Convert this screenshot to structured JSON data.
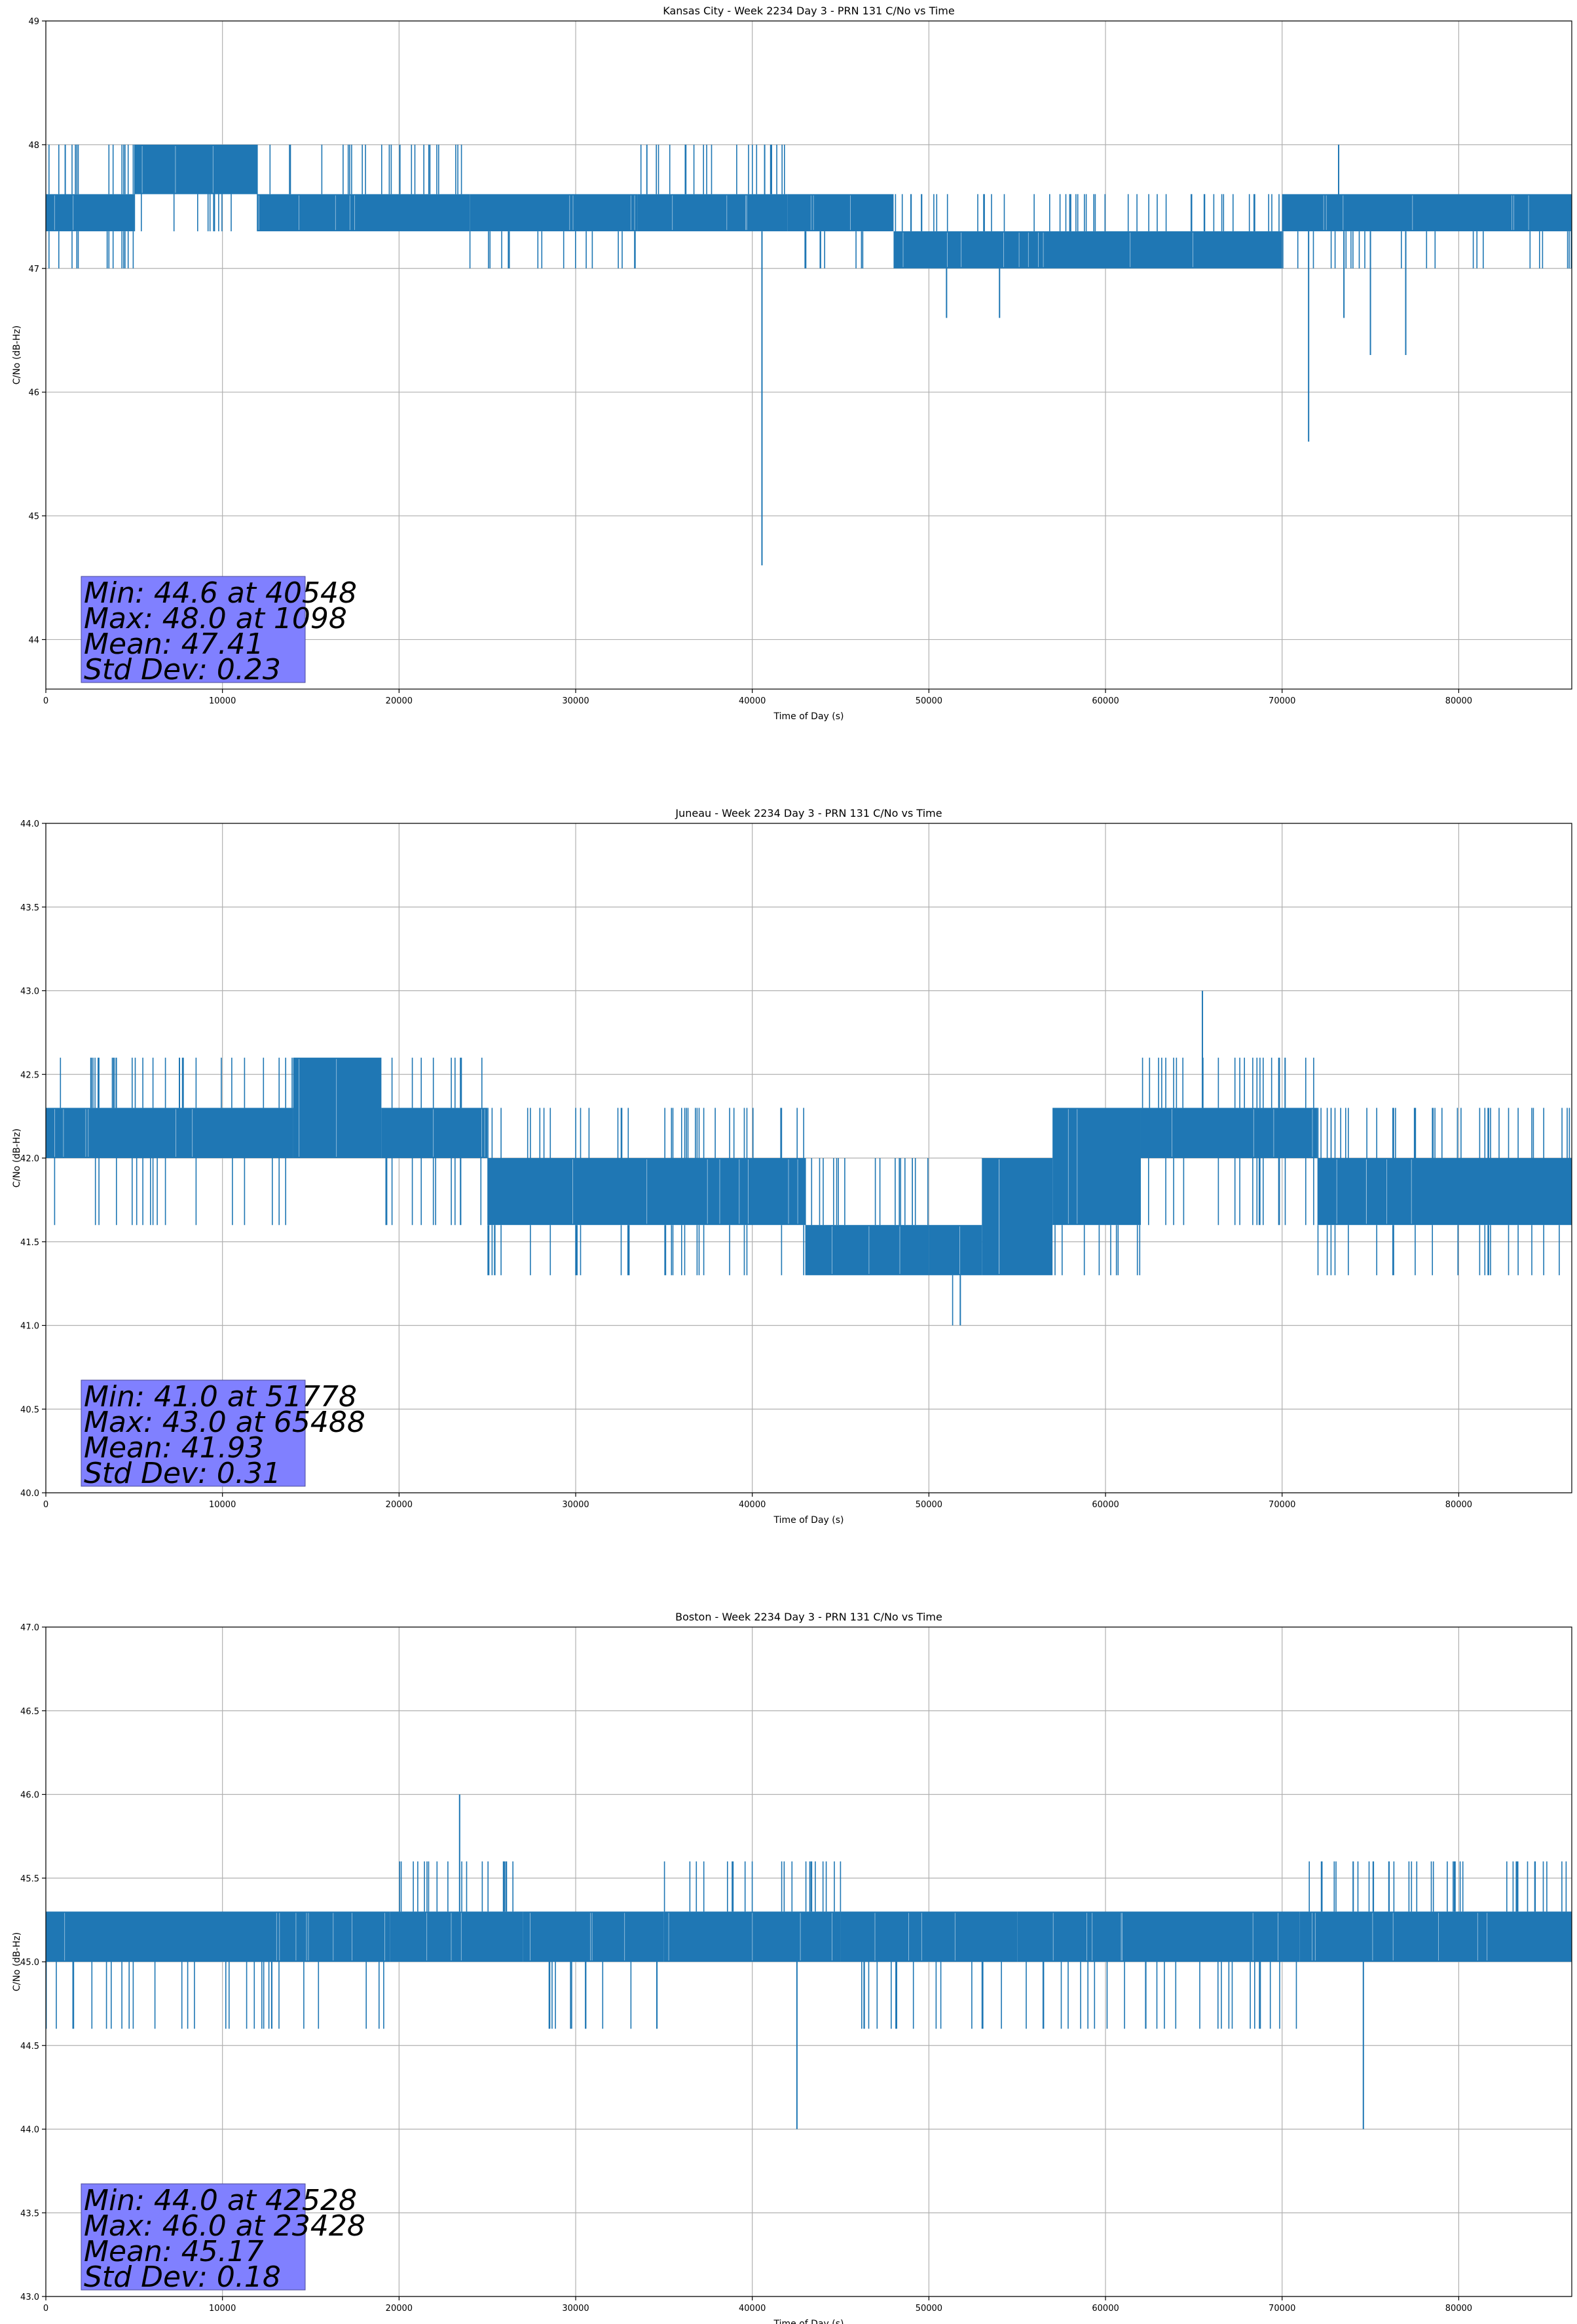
{
  "chart_data": [
    {
      "type": "line",
      "title": "Kansas City - Week 2234 Day 3 - PRN 131 C/No vs Time",
      "xlabel": "Time of Day (s)",
      "ylabel": "C/No (dB-Hz)",
      "xlim": [
        0,
        86400
      ],
      "ylim": [
        43.6,
        49.0
      ],
      "xticks": [
        0,
        10000,
        20000,
        30000,
        40000,
        50000,
        60000,
        70000,
        80000
      ],
      "yticks": [
        44,
        45,
        46,
        47,
        48,
        49
      ],
      "ytick_decimals": 0,
      "grid": true,
      "color": "#1f77b4",
      "series": {
        "name": "PRN 131",
        "segments": [
          {
            "x0": 0,
            "x1": 5000,
            "levels": [
              47.3,
              47.6
            ],
            "up": [
              48.0
            ],
            "down": [
              47.0
            ]
          },
          {
            "x0": 5000,
            "x1": 12000,
            "levels": [
              47.6,
              48.0
            ],
            "up": [],
            "down": [
              47.3
            ]
          },
          {
            "x0": 12000,
            "x1": 24000,
            "levels": [
              47.3,
              47.6
            ],
            "up": [
              48.0
            ],
            "down": []
          },
          {
            "x0": 24000,
            "x1": 33500,
            "levels": [
              47.3,
              47.6
            ],
            "up": [],
            "down": [
              47.0
            ]
          },
          {
            "x0": 33500,
            "x1": 42000,
            "levels": [
              47.3,
              47.6
            ],
            "up": [
              48.0
            ],
            "down": []
          },
          {
            "x0": 42000,
            "x1": 48000,
            "levels": [
              47.3,
              47.6
            ],
            "up": [],
            "down": [
              47.0
            ]
          },
          {
            "x0": 48000,
            "x1": 70000,
            "levels": [
              47.0,
              47.3
            ],
            "up": [
              47.6
            ],
            "down": []
          },
          {
            "x0": 70000,
            "x1": 86400,
            "levels": [
              47.3,
              47.6
            ],
            "up": [],
            "down": [
              47.0
            ]
          }
        ],
        "spikes": [
          [
            40548,
            44.6
          ],
          [
            1098,
            48.0
          ],
          [
            51000,
            46.6
          ],
          [
            54000,
            46.6
          ],
          [
            71500,
            45.6
          ],
          [
            73200,
            48.0
          ],
          [
            73500,
            46.6
          ],
          [
            75000,
            46.3
          ],
          [
            77000,
            46.3
          ],
          [
            40700,
            48.0
          ]
        ]
      },
      "stats": [
        "Min: 44.6 at 40548",
        "Max: 48.0 at 1098",
        "Mean: 47.41",
        "Std Dev: 0.23"
      ]
    },
    {
      "type": "line",
      "title": "Juneau - Week 2234 Day 3 - PRN 131 C/No vs Time",
      "xlabel": "Time of Day (s)",
      "ylabel": "C/No (dB-Hz)",
      "xlim": [
        0,
        86400
      ],
      "ylim": [
        40.0,
        44.0
      ],
      "xticks": [
        0,
        10000,
        20000,
        30000,
        40000,
        50000,
        60000,
        70000,
        80000
      ],
      "yticks": [
        40.0,
        40.5,
        41.0,
        41.5,
        42.0,
        42.5,
        43.0,
        43.5,
        44.0
      ],
      "ytick_decimals": 1,
      "grid": true,
      "color": "#1f77b4",
      "series": {
        "name": "PRN 131",
        "segments": [
          {
            "x0": 0,
            "x1": 14000,
            "levels": [
              42.0,
              42.3
            ],
            "up": [
              42.6
            ],
            "down": [
              41.6
            ]
          },
          {
            "x0": 14000,
            "x1": 19000,
            "levels": [
              42.0,
              42.3,
              42.6
            ],
            "up": [],
            "down": []
          },
          {
            "x0": 19000,
            "x1": 25000,
            "levels": [
              42.0,
              42.3
            ],
            "up": [
              42.6
            ],
            "down": [
              41.6
            ]
          },
          {
            "x0": 25000,
            "x1": 43000,
            "levels": [
              41.6,
              42.0
            ],
            "up": [
              42.3
            ],
            "down": [
              41.3
            ]
          },
          {
            "x0": 43000,
            "x1": 50000,
            "levels": [
              41.3,
              41.6
            ],
            "up": [
              42.0
            ],
            "down": []
          },
          {
            "x0": 50000,
            "x1": 53000,
            "levels": [
              41.3,
              41.6
            ],
            "up": [],
            "down": [
              41.0
            ]
          },
          {
            "x0": 53000,
            "x1": 57000,
            "levels": [
              41.3,
              41.6,
              42.0
            ],
            "up": [],
            "down": []
          },
          {
            "x0": 57000,
            "x1": 62000,
            "levels": [
              41.6,
              42.0,
              42.3
            ],
            "up": [],
            "down": [
              41.3
            ]
          },
          {
            "x0": 62000,
            "x1": 72000,
            "levels": [
              42.0,
              42.3
            ],
            "up": [
              42.6
            ],
            "down": [
              41.6
            ]
          },
          {
            "x0": 72000,
            "x1": 86400,
            "levels": [
              41.6,
              42.0
            ],
            "up": [
              42.3
            ],
            "down": [
              41.3
            ]
          }
        ],
        "spikes": [
          [
            51778,
            41.0
          ],
          [
            65488,
            43.0
          ]
        ]
      },
      "stats": [
        "Min: 41.0 at 51778",
        "Max: 43.0 at 65488",
        "Mean: 41.93",
        "Std Dev: 0.31"
      ]
    },
    {
      "type": "line",
      "title": "Boston - Week 2234 Day 3 - PRN 131 C/No vs Time",
      "xlabel": "Time of Day (s)",
      "ylabel": "C/No (dB-Hz)",
      "xlim": [
        0,
        86400
      ],
      "ylim": [
        43.0,
        47.0
      ],
      "xticks": [
        0,
        10000,
        20000,
        30000,
        40000,
        50000,
        60000,
        70000,
        80000
      ],
      "yticks": [
        43.0,
        43.5,
        44.0,
        44.5,
        45.0,
        45.5,
        46.0,
        46.5,
        47.0
      ],
      "ytick_decimals": 1,
      "grid": true,
      "color": "#1f77b4",
      "series": {
        "name": "PRN 131",
        "segments": [
          {
            "x0": 0,
            "x1": 19500,
            "levels": [
              45.0,
              45.3
            ],
            "up": [],
            "down": [
              44.6
            ]
          },
          {
            "x0": 19500,
            "x1": 27000,
            "levels": [
              45.0,
              45.3
            ],
            "up": [
              45.6
            ],
            "down": []
          },
          {
            "x0": 27000,
            "x1": 35000,
            "levels": [
              45.0,
              45.3
            ],
            "up": [],
            "down": [
              44.6
            ]
          },
          {
            "x0": 35000,
            "x1": 45000,
            "levels": [
              45.0,
              45.3
            ],
            "up": [
              45.6
            ],
            "down": []
          },
          {
            "x0": 45000,
            "x1": 55000,
            "levels": [
              45.0,
              45.3
            ],
            "up": [],
            "down": [
              44.6
            ]
          },
          {
            "x0": 55000,
            "x1": 71000,
            "levels": [
              45.0,
              45.3
            ],
            "up": [],
            "down": [
              44.6
            ]
          },
          {
            "x0": 71000,
            "x1": 86400,
            "levels": [
              45.0,
              45.3
            ],
            "up": [
              45.6
            ],
            "down": []
          }
        ],
        "spikes": [
          [
            42528,
            44.0
          ],
          [
            23428,
            46.0
          ],
          [
            74600,
            44.0
          ]
        ]
      },
      "stats": [
        "Min: 44.0 at 42528",
        "Max: 46.0 at 23428",
        "Mean: 45.17",
        "Std Dev: 0.18"
      ]
    }
  ]
}
